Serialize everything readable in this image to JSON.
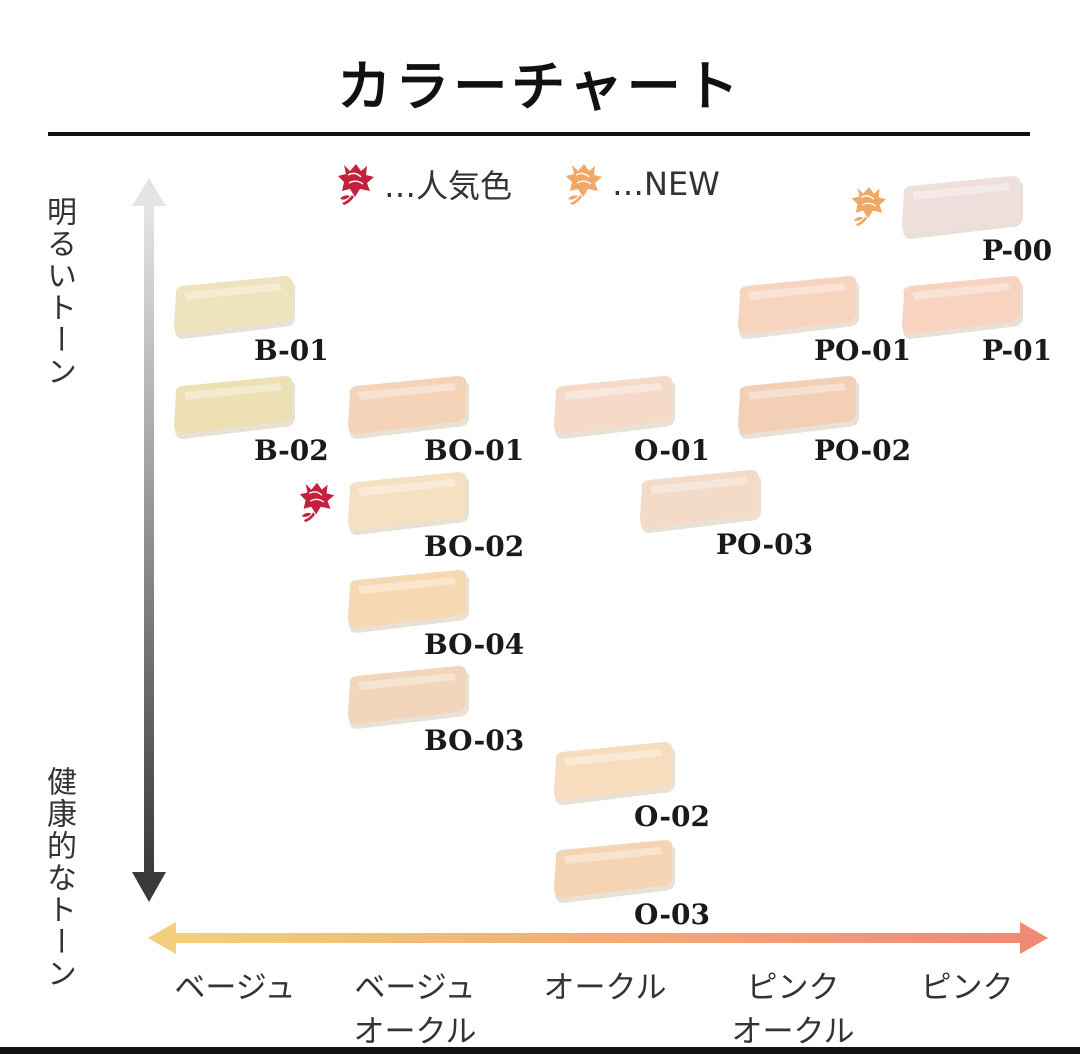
{
  "title": "カラーチャート",
  "legend": {
    "popular_text": "…人気色",
    "popular_icon": "rose-icon",
    "popular_color": "#c4213f",
    "new_text": "…NEW",
    "new_icon": "rose-icon",
    "new_color": "#f0a868"
  },
  "y_axis": {
    "top_label": "明るいトーン",
    "bottom_label": "健康的なトーン"
  },
  "x_axis": {
    "categories": [
      {
        "line1": "ベージュ",
        "line2": ""
      },
      {
        "line1": "ベージュ",
        "line2": "オークル"
      },
      {
        "line1": "オークル",
        "line2": ""
      },
      {
        "line1": "ピンク",
        "line2": "オークル"
      },
      {
        "line1": "ピンク",
        "line2": ""
      }
    ],
    "start_color": "#f2cf7c",
    "end_color": "#f08a74"
  },
  "swatches": [
    {
      "code": "P-00",
      "color": "#efdfdc",
      "tag": "new"
    },
    {
      "code": "B-01",
      "color": "#efe3bd",
      "tag": ""
    },
    {
      "code": "PO-01",
      "color": "#f7d4be",
      "tag": ""
    },
    {
      "code": "P-01",
      "color": "#f8d3bf",
      "tag": ""
    },
    {
      "code": "B-02",
      "color": "#ece0b4",
      "tag": ""
    },
    {
      "code": "BO-01",
      "color": "#f5d3b9",
      "tag": ""
    },
    {
      "code": "O-01",
      "color": "#f5dac8",
      "tag": ""
    },
    {
      "code": "PO-02",
      "color": "#f3cfb5",
      "tag": ""
    },
    {
      "code": "BO-02",
      "color": "#f6e0c2",
      "tag": "popular"
    },
    {
      "code": "PO-03",
      "color": "#f3dbc7",
      "tag": ""
    },
    {
      "code": "BO-04",
      "color": "#f6d9b2",
      "tag": ""
    },
    {
      "code": "BO-03",
      "color": "#f1d6bc",
      "tag": ""
    },
    {
      "code": "O-02",
      "color": "#f7ddbd",
      "tag": ""
    },
    {
      "code": "O-03",
      "color": "#f4d4b3",
      "tag": ""
    }
  ]
}
